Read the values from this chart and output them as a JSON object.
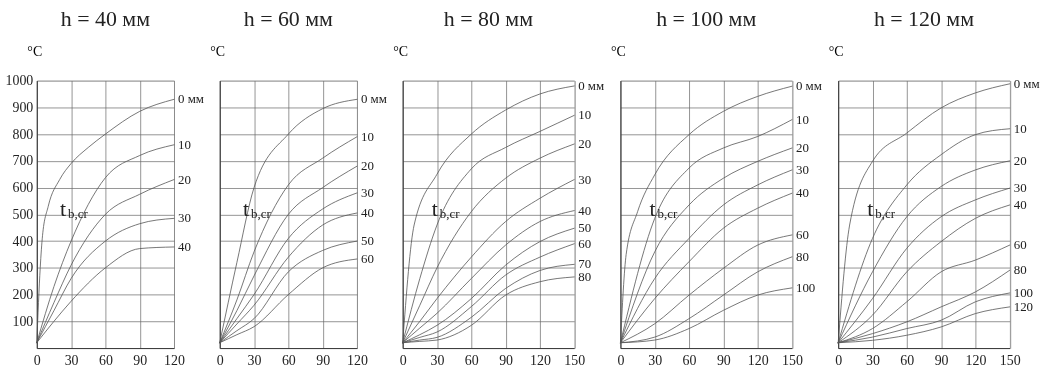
{
  "chart_data": [
    {
      "type": "line",
      "title": "h = 40 мм",
      "ylabel": "°C",
      "xlim": [
        0,
        120
      ],
      "xticks": [
        0,
        30,
        60,
        90,
        120
      ],
      "ylim": [
        0,
        1000
      ],
      "yticks": [
        100,
        200,
        300,
        400,
        500,
        600,
        700,
        800,
        900,
        1000
      ],
      "grid": true,
      "annotations": [
        "t$_{b,cr}$"
      ],
      "series": [
        {
          "name": "0 мм",
          "color": "#555555",
          "x": [
            0,
            3,
            5,
            10,
            20,
            30,
            45,
            60,
            90,
            120
          ],
          "values": [
            20,
            300,
            420,
            530,
            630,
            690,
            750,
            800,
            885,
            930
          ]
        },
        {
          "name": "10",
          "color": "#555555",
          "x": [
            0,
            15,
            30,
            60,
            90,
            120
          ],
          "values": [
            20,
            230,
            400,
            637,
            720,
            760
          ]
        },
        {
          "name": "20",
          "color": "#555555",
          "x": [
            0,
            15,
            30,
            60,
            90,
            120
          ],
          "values": [
            20,
            170,
            310,
            500,
            575,
            630
          ]
        },
        {
          "name": "30",
          "color": "#555555",
          "x": [
            0,
            15,
            30,
            60,
            90,
            120
          ],
          "values": [
            20,
            140,
            260,
            400,
            465,
            485
          ]
        },
        {
          "name": "40",
          "color": "#555555",
          "x": [
            0,
            15,
            30,
            60,
            90,
            120
          ],
          "values": [
            20,
            100,
            175,
            300,
            372,
            378
          ]
        }
      ]
    },
    {
      "type": "line",
      "title": "h = 60 мм",
      "ylabel": "°C",
      "xlim": [
        0,
        120
      ],
      "xticks": [
        0,
        30,
        60,
        90,
        120
      ],
      "ylim": [
        0,
        1000
      ],
      "yticks": [
        100,
        200,
        300,
        400,
        500,
        600,
        700,
        800,
        900,
        1000
      ],
      "grid": true,
      "tick_labels": "x",
      "annotations": [
        "t$_{b,cr}$"
      ],
      "series": [
        {
          "name": "0 мм",
          "color": "#555555",
          "x": [
            0,
            15,
            30,
            60,
            90,
            120
          ],
          "values": [
            20,
            320,
            600,
            800,
            895,
            930
          ]
        },
        {
          "name": "10",
          "color": "#555555",
          "x": [
            0,
            15,
            30,
            60,
            90,
            120
          ],
          "values": [
            20,
            180,
            360,
            610,
            710,
            790
          ]
        },
        {
          "name": "20",
          "color": "#555555",
          "x": [
            0,
            15,
            30,
            60,
            90,
            120
          ],
          "values": [
            20,
            140,
            270,
            500,
            600,
            680
          ]
        },
        {
          "name": "30",
          "color": "#555555",
          "x": [
            0,
            15,
            30,
            60,
            90,
            120
          ],
          "values": [
            20,
            110,
            200,
            410,
            520,
            580
          ]
        },
        {
          "name": "40",
          "color": "#555555",
          "x": [
            0,
            15,
            30,
            60,
            90,
            120
          ],
          "values": [
            20,
            90,
            160,
            340,
            460,
            505
          ]
        },
        {
          "name": "50",
          "color": "#555555",
          "x": [
            0,
            15,
            30,
            60,
            90,
            120
          ],
          "values": [
            20,
            65,
            110,
            285,
            365,
            400
          ]
        },
        {
          "name": "60",
          "color": "#555555",
          "x": [
            0,
            15,
            30,
            60,
            90,
            120
          ],
          "values": [
            20,
            50,
            80,
            200,
            300,
            333
          ]
        }
      ]
    },
    {
      "type": "line",
      "title": "h = 80 мм",
      "ylabel": "°C",
      "xlim": [
        0,
        150
      ],
      "xticks": [
        0,
        30,
        60,
        90,
        120,
        150
      ],
      "ylim": [
        0,
        1000
      ],
      "yticks": [
        100,
        200,
        300,
        400,
        500,
        600,
        700,
        800,
        900,
        1000
      ],
      "grid": true,
      "tick_labels": "x",
      "annotations": [
        "t$_{b,cr}$"
      ],
      "series": [
        {
          "name": "0 мм",
          "color": "#555555",
          "x": [
            0,
            10,
            30,
            60,
            90,
            120,
            150
          ],
          "values": [
            20,
            460,
            650,
            800,
            890,
            950,
            980
          ]
        },
        {
          "name": "10",
          "color": "#555555",
          "x": [
            0,
            15,
            30,
            60,
            90,
            120,
            150
          ],
          "values": [
            20,
            260,
            460,
            670,
            750,
            810,
            870
          ]
        },
        {
          "name": "20",
          "color": "#555555",
          "x": [
            0,
            15,
            30,
            60,
            90,
            120,
            150
          ],
          "values": [
            20,
            160,
            300,
            510,
            635,
            710,
            763
          ]
        },
        {
          "name": "30",
          "color": "#555555",
          "x": [
            0,
            15,
            30,
            60,
            90,
            120,
            150
          ],
          "values": [
            20,
            100,
            185,
            340,
            473,
            560,
            630
          ]
        },
        {
          "name": "40",
          "color": "#555555",
          "x": [
            0,
            15,
            30,
            60,
            90,
            120,
            150
          ],
          "values": [
            20,
            75,
            130,
            260,
            385,
            473,
            514
          ]
        },
        {
          "name": "50",
          "color": "#555555",
          "x": [
            0,
            15,
            30,
            60,
            90,
            120,
            150
          ],
          "values": [
            20,
            50,
            85,
            185,
            310,
            398,
            448
          ]
        },
        {
          "name": "60",
          "color": "#555555",
          "x": [
            0,
            15,
            30,
            60,
            90,
            120,
            150
          ],
          "values": [
            20,
            40,
            60,
            155,
            273,
            340,
            390
          ]
        },
        {
          "name": "70",
          "color": "#555555",
          "x": [
            0,
            15,
            30,
            60,
            90,
            120,
            150
          ],
          "values": [
            20,
            30,
            40,
            115,
            223,
            290,
            313
          ]
        },
        {
          "name": "80",
          "color": "#555555",
          "x": [
            0,
            15,
            30,
            60,
            90,
            120,
            150
          ],
          "values": [
            20,
            25,
            30,
            85,
            198,
            248,
            266
          ]
        }
      ]
    },
    {
      "type": "line",
      "title": "h = 100 мм",
      "ylabel": "°C",
      "xlim": [
        0,
        150
      ],
      "xticks": [
        0,
        30,
        60,
        90,
        120,
        150
      ],
      "ylim": [
        0,
        1000
      ],
      "yticks": [
        100,
        200,
        300,
        400,
        500,
        600,
        700,
        800,
        900,
        1000
      ],
      "grid": true,
      "tick_labels": "x",
      "annotations": [
        "t$_{b,cr}$"
      ],
      "series": [
        {
          "name": "0 мм",
          "color": "#555555",
          "x": [
            0,
            5,
            15,
            30,
            60,
            90,
            120,
            150
          ],
          "values": [
            20,
            350,
            510,
            648,
            798,
            885,
            941,
            979
          ]
        },
        {
          "name": "10",
          "color": "#555555",
          "x": [
            0,
            30,
            60,
            90,
            120,
            150
          ],
          "values": [
            20,
            485,
            673,
            748,
            791,
            854
          ]
        },
        {
          "name": "20",
          "color": "#555555",
          "x": [
            0,
            30,
            60,
            90,
            120,
            150
          ],
          "values": [
            20,
            360,
            535,
            635,
            698,
            748
          ]
        },
        {
          "name": "30",
          "color": "#555555",
          "x": [
            0,
            30,
            60,
            90,
            120,
            150
          ],
          "values": [
            20,
            260,
            410,
            535,
            610,
            666
          ]
        },
        {
          "name": "40",
          "color": "#555555",
          "x": [
            0,
            30,
            60,
            90,
            120,
            150
          ],
          "values": [
            20,
            185,
            323,
            448,
            523,
            579
          ]
        },
        {
          "name": "60",
          "color": "#555555",
          "x": [
            0,
            30,
            60,
            90,
            120,
            150
          ],
          "values": [
            20,
            91,
            198,
            298,
            385,
            423
          ]
        },
        {
          "name": "80",
          "color": "#555555",
          "x": [
            0,
            30,
            60,
            90,
            120,
            150
          ],
          "values": [
            20,
            41,
            110,
            198,
            285,
            341
          ]
        },
        {
          "name": "100",
          "color": "#555555",
          "x": [
            0,
            30,
            60,
            90,
            120,
            150
          ],
          "values": [
            20,
            30,
            73,
            141,
            198,
            225
          ]
        }
      ]
    },
    {
      "type": "line",
      "title": "h = 120 мм",
      "ylabel": "°C",
      "xlim": [
        0,
        150
      ],
      "xticks": [
        0,
        30,
        60,
        90,
        120,
        150
      ],
      "ylim": [
        0,
        1000
      ],
      "yticks": [
        100,
        200,
        300,
        400,
        500,
        600,
        700,
        800,
        900,
        1000
      ],
      "grid": true,
      "tick_labels": "x",
      "annotations": [
        "t$_{b,cr}$"
      ],
      "series": [
        {
          "name": "0 мм",
          "color": "#555555",
          "x": [
            0,
            10,
            30,
            60,
            90,
            120,
            150
          ],
          "values": [
            20,
            460,
            698,
            804,
            898,
            954,
            988
          ]
        },
        {
          "name": "10",
          "color": "#555555",
          "x": [
            0,
            30,
            60,
            90,
            120,
            150
          ],
          "values": [
            20,
            410,
            610,
            723,
            798,
            820
          ]
        },
        {
          "name": "20",
          "color": "#555555",
          "x": [
            0,
            30,
            60,
            90,
            120,
            150
          ],
          "values": [
            20,
            285,
            491,
            604,
            666,
            700
          ]
        },
        {
          "name": "30",
          "color": "#555555",
          "x": [
            0,
            30,
            60,
            90,
            120,
            150
          ],
          "values": [
            20,
            185,
            373,
            491,
            554,
            598
          ]
        },
        {
          "name": "40",
          "color": "#555555",
          "x": [
            0,
            30,
            60,
            90,
            120,
            150
          ],
          "values": [
            20,
            123,
            285,
            398,
            485,
            535
          ]
        },
        {
          "name": "60",
          "color": "#555555",
          "x": [
            0,
            30,
            60,
            90,
            120,
            150
          ],
          "values": [
            20,
            73,
            173,
            285,
            329,
            385
          ]
        },
        {
          "name": "80",
          "color": "#555555",
          "x": [
            0,
            30,
            60,
            90,
            120,
            150
          ],
          "values": [
            20,
            54,
            98,
            154,
            210,
            291
          ]
        },
        {
          "name": "100",
          "color": "#555555",
          "x": [
            0,
            30,
            60,
            90,
            120,
            150
          ],
          "values": [
            20,
            41,
            73,
            104,
            173,
            206
          ]
        },
        {
          "name": "120",
          "color": "#555555",
          "x": [
            0,
            30,
            60,
            90,
            120,
            150
          ],
          "values": [
            20,
            29,
            48,
            79,
            129,
            154
          ]
        }
      ]
    }
  ]
}
